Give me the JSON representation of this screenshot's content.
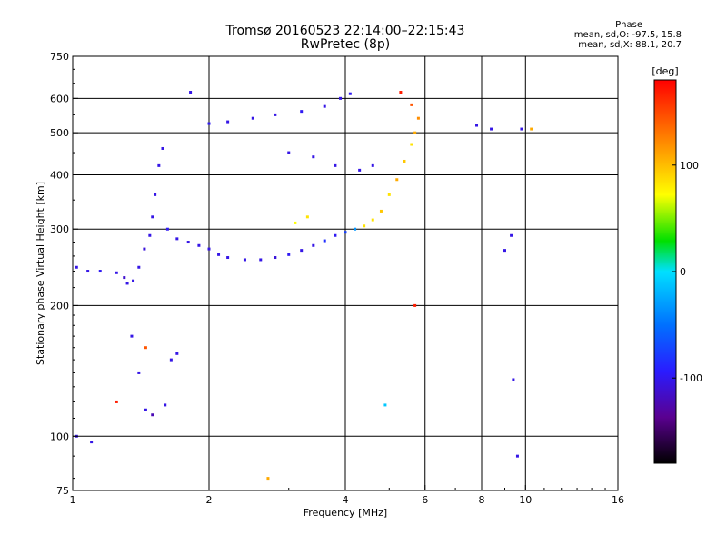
{
  "chart_data": {
    "type": "scatter",
    "title": "Tromsø 20160523 22:14:00–22:15:43",
    "subtitle": "RwPretec (8p)",
    "info": {
      "heading": "Phase",
      "o_line": "mean, sd,O: -97.5, 15.8",
      "x_line": "mean, sd,X:  88.1, 20.7"
    },
    "xlabel": "Frequency [MHz]",
    "ylabel": "Stationary phase Virtual Height [km]",
    "x_scale": "log",
    "y_scale": "log",
    "xlim": [
      1,
      16
    ],
    "ylim": [
      75,
      750
    ],
    "xticks": [
      1,
      2,
      4,
      6,
      8,
      10,
      16
    ],
    "yticks": [
      75,
      100,
      200,
      300,
      400,
      500,
      600,
      750
    ],
    "vlines": [
      2,
      4,
      6,
      8,
      10
    ],
    "hlines": [
      100,
      200,
      300,
      400,
      500,
      600
    ],
    "colorbar": {
      "label": "[deg]",
      "range": [
        -180,
        180
      ],
      "ticks": [
        100,
        0,
        -100
      ]
    },
    "color_scale": [
      "#000000",
      "#5a0090",
      "#2a1cff",
      "#0070ff",
      "#00e0ff",
      "#00e000",
      "#ffff00",
      "#ff8000",
      "#ff0000"
    ],
    "series": [
      {
        "points": [
          [
            1.02,
            245,
            -100
          ],
          [
            1.08,
            240,
            -100
          ],
          [
            1.15,
            240,
            -95
          ],
          [
            1.25,
            238,
            -100
          ],
          [
            1.3,
            232,
            -110
          ],
          [
            1.32,
            225,
            -100
          ],
          [
            1.36,
            228,
            -100
          ],
          [
            1.4,
            245,
            -100
          ],
          [
            1.44,
            270,
            -105
          ],
          [
            1.48,
            290,
            -100
          ],
          [
            1.5,
            320,
            -100
          ],
          [
            1.52,
            360,
            -100
          ],
          [
            1.55,
            420,
            -100
          ],
          [
            1.58,
            460,
            -100
          ],
          [
            1.62,
            300,
            -95
          ],
          [
            1.7,
            285,
            -100
          ],
          [
            1.8,
            280,
            -100
          ],
          [
            1.9,
            275,
            -100
          ],
          [
            2.0,
            270,
            -100
          ],
          [
            2.1,
            262,
            -100
          ],
          [
            2.2,
            258,
            -100
          ],
          [
            2.4,
            255,
            -100
          ],
          [
            2.6,
            255,
            -100
          ],
          [
            2.8,
            258,
            -105
          ],
          [
            3.0,
            262,
            -95
          ],
          [
            3.2,
            268,
            -100
          ],
          [
            3.4,
            275,
            -100
          ],
          [
            3.6,
            282,
            -80
          ],
          [
            3.8,
            290,
            -95
          ],
          [
            4.0,
            295,
            -70
          ],
          [
            4.2,
            300,
            -30
          ],
          [
            4.4,
            305,
            100
          ],
          [
            4.6,
            315,
            100
          ],
          [
            4.8,
            330,
            110
          ],
          [
            5.0,
            360,
            100
          ],
          [
            5.2,
            390,
            120
          ],
          [
            5.4,
            430,
            110
          ],
          [
            5.6,
            470,
            100
          ],
          [
            5.7,
            500,
            120
          ],
          [
            5.8,
            540,
            130
          ],
          [
            5.6,
            580,
            150
          ],
          [
            5.3,
            620,
            170
          ],
          [
            3.1,
            310,
            90
          ],
          [
            3.3,
            320,
            100
          ],
          [
            2.0,
            525,
            -95
          ],
          [
            2.2,
            530,
            -100
          ],
          [
            2.5,
            540,
            -100
          ],
          [
            2.8,
            550,
            -100
          ],
          [
            3.2,
            560,
            -95
          ],
          [
            3.6,
            575,
            -100
          ],
          [
            3.9,
            600,
            -100
          ],
          [
            4.1,
            615,
            -95
          ],
          [
            3.0,
            450,
            -100
          ],
          [
            3.4,
            440,
            -100
          ],
          [
            3.8,
            420,
            -100
          ],
          [
            4.3,
            410,
            -100
          ],
          [
            4.6,
            420,
            -100
          ],
          [
            1.82,
            620,
            -100
          ],
          [
            1.02,
            100,
            -100
          ],
          [
            1.1,
            97,
            -100
          ],
          [
            1.35,
            170,
            -100
          ],
          [
            1.4,
            140,
            -100
          ],
          [
            1.45,
            115,
            -100
          ],
          [
            1.5,
            112,
            -120
          ],
          [
            1.6,
            118,
            -100
          ],
          [
            1.65,
            150,
            -100
          ],
          [
            1.7,
            155,
            -100
          ],
          [
            1.25,
            120,
            170
          ],
          [
            1.45,
            160,
            150
          ],
          [
            2.7,
            80,
            120
          ],
          [
            4.9,
            118,
            -10
          ],
          [
            5.7,
            200,
            170
          ],
          [
            7.8,
            520,
            -100
          ],
          [
            8.4,
            510,
            -100
          ],
          [
            9.0,
            268,
            -100
          ],
          [
            9.3,
            290,
            -100
          ],
          [
            9.4,
            135,
            -100
          ],
          [
            9.6,
            90,
            -100
          ],
          [
            9.8,
            510,
            -100
          ],
          [
            10.3,
            510,
            120
          ]
        ]
      }
    ]
  }
}
